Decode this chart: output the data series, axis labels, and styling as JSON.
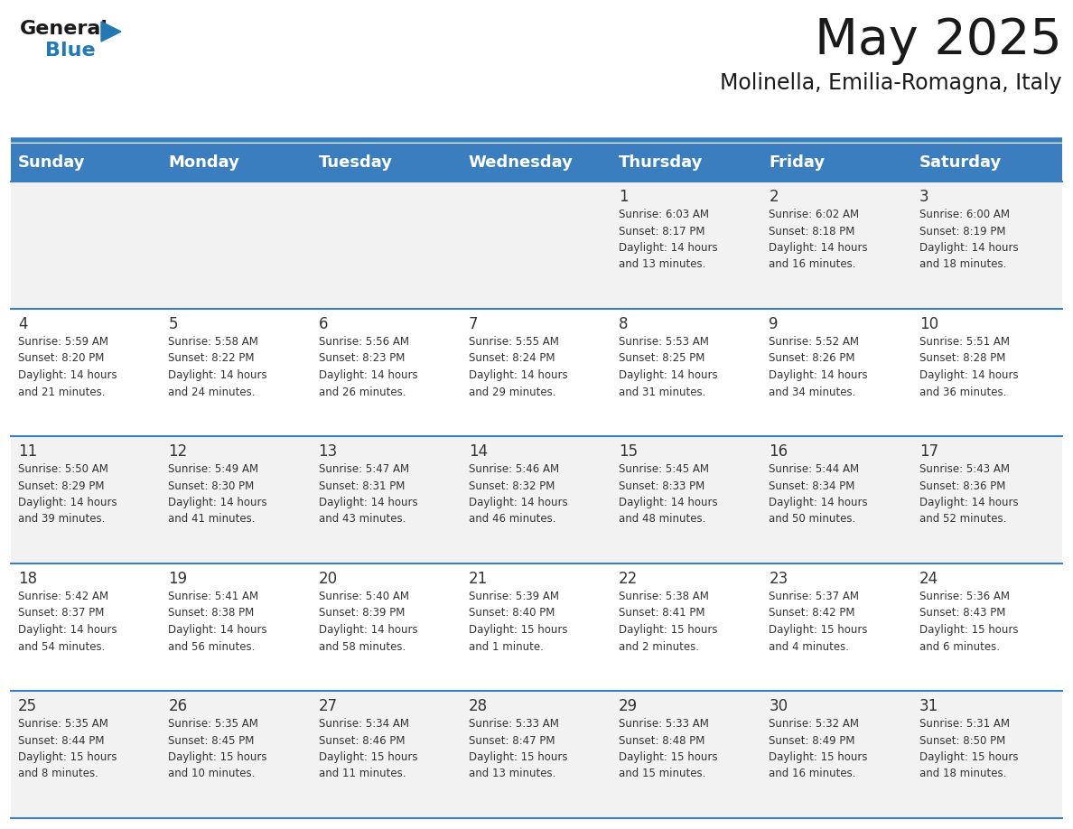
{
  "title": "May 2025",
  "subtitle": "Molinella, Emilia-Romagna, Italy",
  "header_bg": "#3A7EBF",
  "header_text": "#FFFFFF",
  "header_days": [
    "Sunday",
    "Monday",
    "Tuesday",
    "Wednesday",
    "Thursday",
    "Friday",
    "Saturday"
  ],
  "row_bg_odd": "#F2F2F2",
  "row_bg_even": "#FFFFFF",
  "cell_text_color": "#333333",
  "divider_color": "#3A7EBF",
  "weeks": [
    [
      {
        "day": "",
        "info": ""
      },
      {
        "day": "",
        "info": ""
      },
      {
        "day": "",
        "info": ""
      },
      {
        "day": "",
        "info": ""
      },
      {
        "day": "1",
        "info": "Sunrise: 6:03 AM\nSunset: 8:17 PM\nDaylight: 14 hours\nand 13 minutes."
      },
      {
        "day": "2",
        "info": "Sunrise: 6:02 AM\nSunset: 8:18 PM\nDaylight: 14 hours\nand 16 minutes."
      },
      {
        "day": "3",
        "info": "Sunrise: 6:00 AM\nSunset: 8:19 PM\nDaylight: 14 hours\nand 18 minutes."
      }
    ],
    [
      {
        "day": "4",
        "info": "Sunrise: 5:59 AM\nSunset: 8:20 PM\nDaylight: 14 hours\nand 21 minutes."
      },
      {
        "day": "5",
        "info": "Sunrise: 5:58 AM\nSunset: 8:22 PM\nDaylight: 14 hours\nand 24 minutes."
      },
      {
        "day": "6",
        "info": "Sunrise: 5:56 AM\nSunset: 8:23 PM\nDaylight: 14 hours\nand 26 minutes."
      },
      {
        "day": "7",
        "info": "Sunrise: 5:55 AM\nSunset: 8:24 PM\nDaylight: 14 hours\nand 29 minutes."
      },
      {
        "day": "8",
        "info": "Sunrise: 5:53 AM\nSunset: 8:25 PM\nDaylight: 14 hours\nand 31 minutes."
      },
      {
        "day": "9",
        "info": "Sunrise: 5:52 AM\nSunset: 8:26 PM\nDaylight: 14 hours\nand 34 minutes."
      },
      {
        "day": "10",
        "info": "Sunrise: 5:51 AM\nSunset: 8:28 PM\nDaylight: 14 hours\nand 36 minutes."
      }
    ],
    [
      {
        "day": "11",
        "info": "Sunrise: 5:50 AM\nSunset: 8:29 PM\nDaylight: 14 hours\nand 39 minutes."
      },
      {
        "day": "12",
        "info": "Sunrise: 5:49 AM\nSunset: 8:30 PM\nDaylight: 14 hours\nand 41 minutes."
      },
      {
        "day": "13",
        "info": "Sunrise: 5:47 AM\nSunset: 8:31 PM\nDaylight: 14 hours\nand 43 minutes."
      },
      {
        "day": "14",
        "info": "Sunrise: 5:46 AM\nSunset: 8:32 PM\nDaylight: 14 hours\nand 46 minutes."
      },
      {
        "day": "15",
        "info": "Sunrise: 5:45 AM\nSunset: 8:33 PM\nDaylight: 14 hours\nand 48 minutes."
      },
      {
        "day": "16",
        "info": "Sunrise: 5:44 AM\nSunset: 8:34 PM\nDaylight: 14 hours\nand 50 minutes."
      },
      {
        "day": "17",
        "info": "Sunrise: 5:43 AM\nSunset: 8:36 PM\nDaylight: 14 hours\nand 52 minutes."
      }
    ],
    [
      {
        "day": "18",
        "info": "Sunrise: 5:42 AM\nSunset: 8:37 PM\nDaylight: 14 hours\nand 54 minutes."
      },
      {
        "day": "19",
        "info": "Sunrise: 5:41 AM\nSunset: 8:38 PM\nDaylight: 14 hours\nand 56 minutes."
      },
      {
        "day": "20",
        "info": "Sunrise: 5:40 AM\nSunset: 8:39 PM\nDaylight: 14 hours\nand 58 minutes."
      },
      {
        "day": "21",
        "info": "Sunrise: 5:39 AM\nSunset: 8:40 PM\nDaylight: 15 hours\nand 1 minute."
      },
      {
        "day": "22",
        "info": "Sunrise: 5:38 AM\nSunset: 8:41 PM\nDaylight: 15 hours\nand 2 minutes."
      },
      {
        "day": "23",
        "info": "Sunrise: 5:37 AM\nSunset: 8:42 PM\nDaylight: 15 hours\nand 4 minutes."
      },
      {
        "day": "24",
        "info": "Sunrise: 5:36 AM\nSunset: 8:43 PM\nDaylight: 15 hours\nand 6 minutes."
      }
    ],
    [
      {
        "day": "25",
        "info": "Sunrise: 5:35 AM\nSunset: 8:44 PM\nDaylight: 15 hours\nand 8 minutes."
      },
      {
        "day": "26",
        "info": "Sunrise: 5:35 AM\nSunset: 8:45 PM\nDaylight: 15 hours\nand 10 minutes."
      },
      {
        "day": "27",
        "info": "Sunrise: 5:34 AM\nSunset: 8:46 PM\nDaylight: 15 hours\nand 11 minutes."
      },
      {
        "day": "28",
        "info": "Sunrise: 5:33 AM\nSunset: 8:47 PM\nDaylight: 15 hours\nand 13 minutes."
      },
      {
        "day": "29",
        "info": "Sunrise: 5:33 AM\nSunset: 8:48 PM\nDaylight: 15 hours\nand 15 minutes."
      },
      {
        "day": "30",
        "info": "Sunrise: 5:32 AM\nSunset: 8:49 PM\nDaylight: 15 hours\nand 16 minutes."
      },
      {
        "day": "31",
        "info": "Sunrise: 5:31 AM\nSunset: 8:50 PM\nDaylight: 15 hours\nand 18 minutes."
      }
    ]
  ],
  "logo_general_color": "#1A1A1A",
  "logo_blue_color": "#2279B5",
  "logo_triangle_color": "#2279B5",
  "fig_width": 11.88,
  "fig_height": 9.18,
  "dpi": 100
}
